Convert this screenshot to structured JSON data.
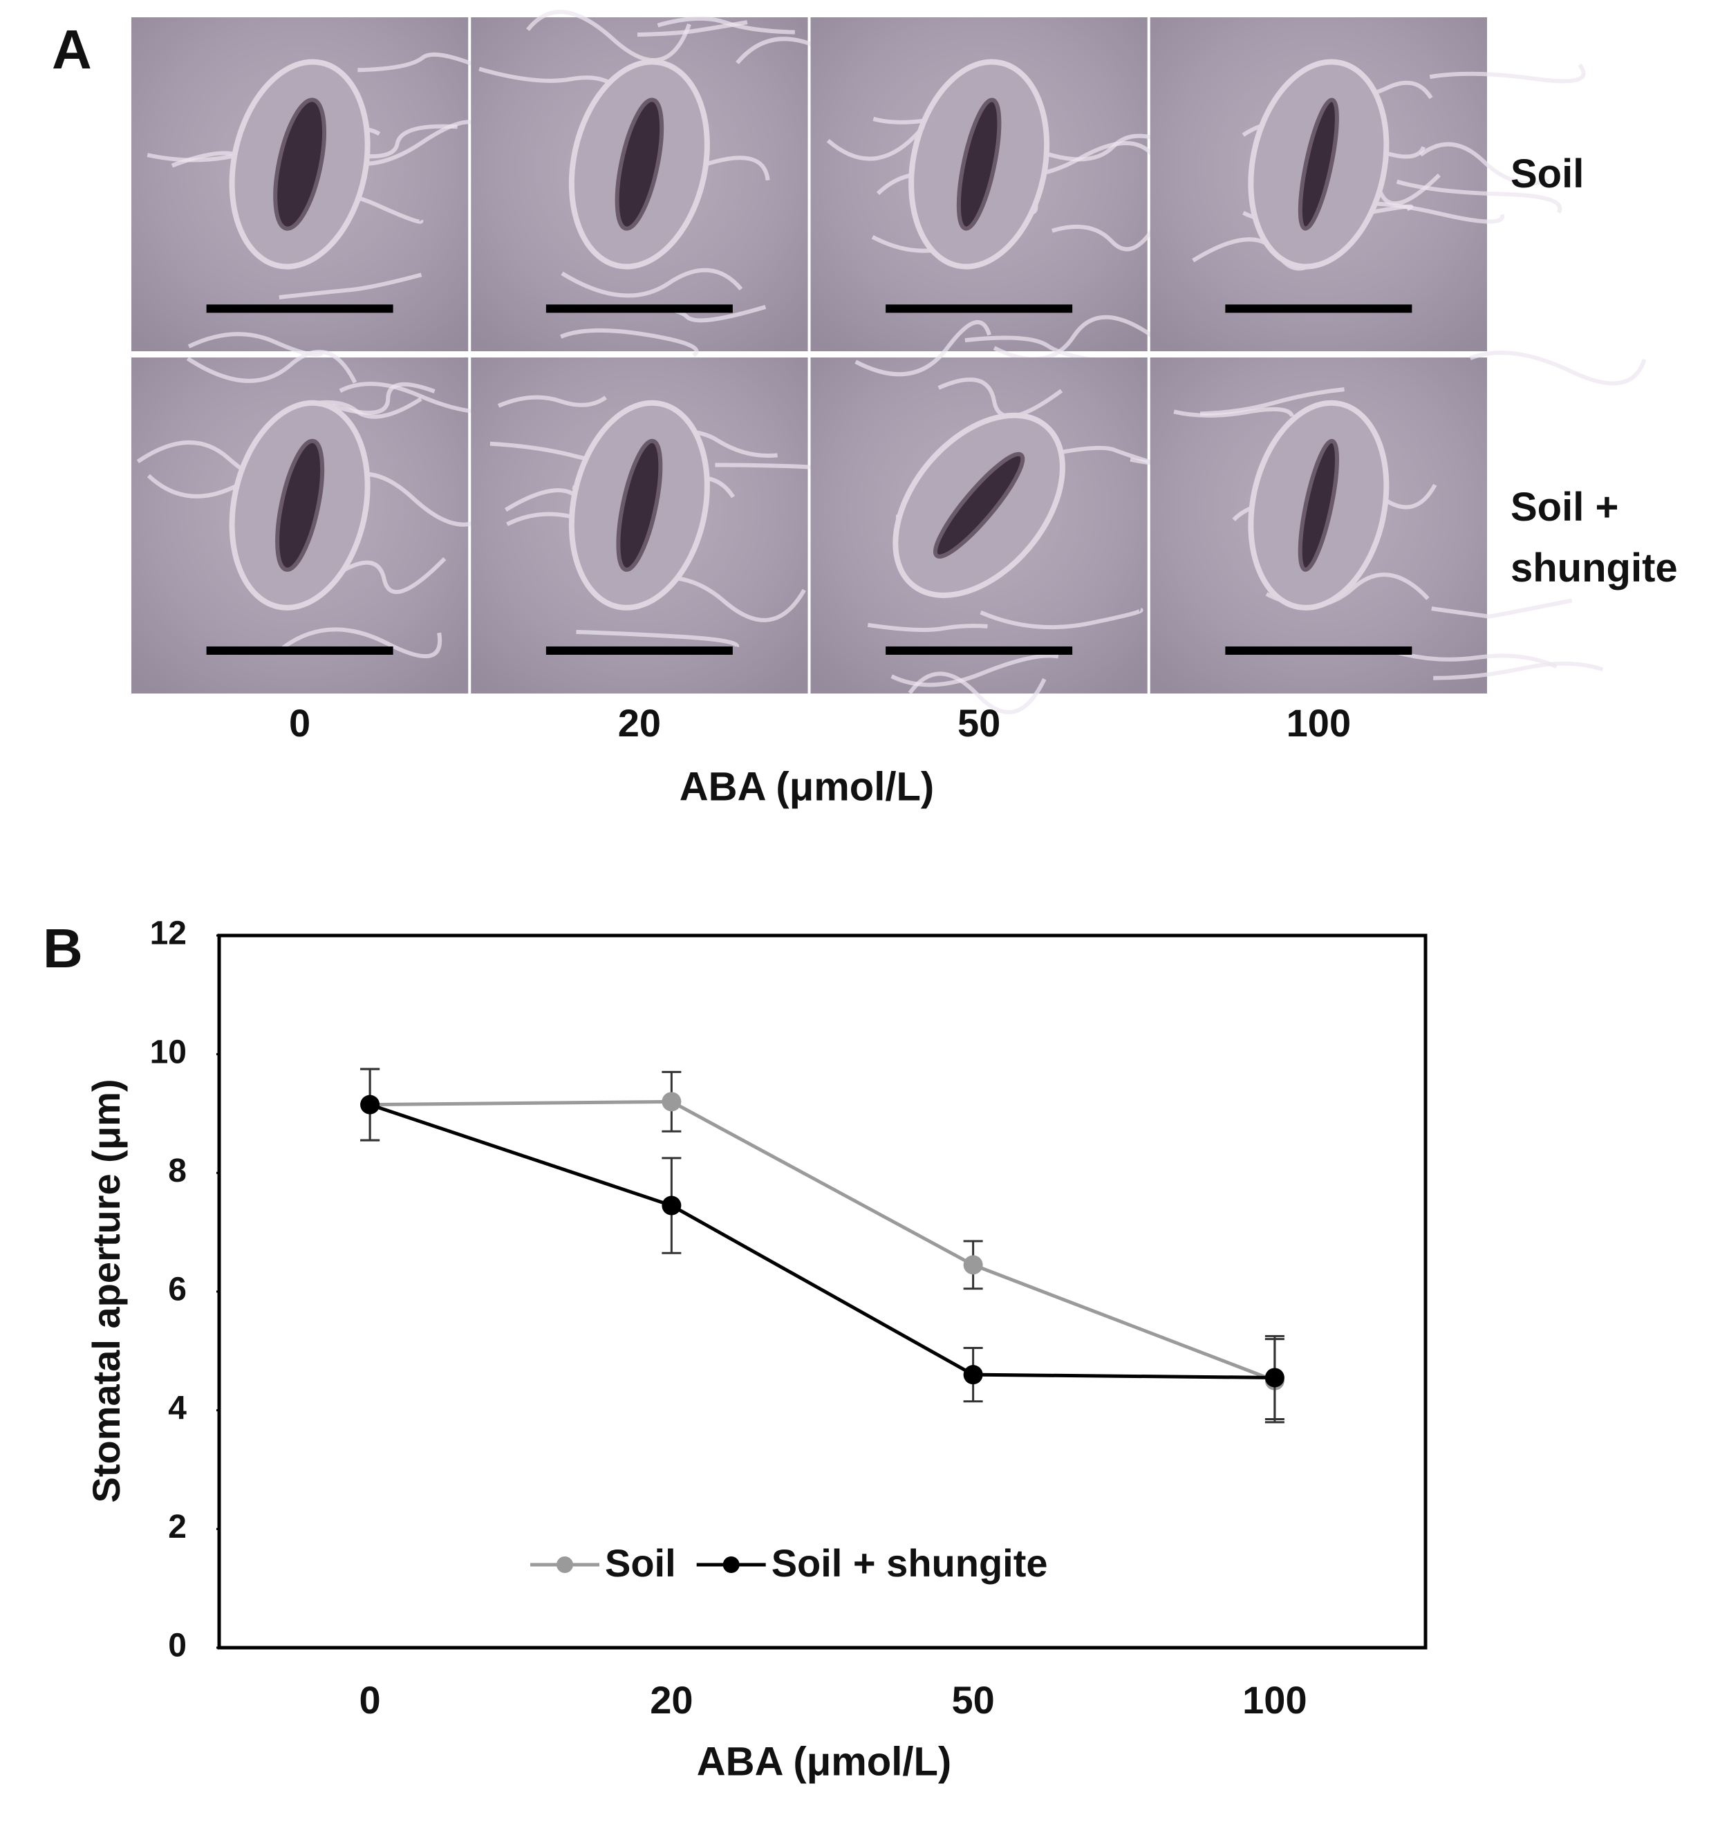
{
  "panel_a": {
    "label": "A",
    "rows": [
      "Soil",
      "Soil + shungite"
    ],
    "columns": [
      "0",
      "20",
      "50",
      "100"
    ],
    "x_label": "ABA (μmol/L)"
  },
  "chart_data": {
    "type": "line",
    "panel_label": "B",
    "categories": [
      "0",
      "20",
      "50",
      "100"
    ],
    "x_label": "ABA (μmol/L)",
    "y_label": "Stomatal aperture (μm)",
    "ylim": [
      0,
      12
    ],
    "yticks": [
      0,
      2,
      4,
      6,
      8,
      10,
      12
    ],
    "grid": false,
    "legend": "lower center",
    "series": [
      {
        "name": "Soil",
        "color": "#9a9a9a",
        "values": [
          9.15,
          9.2,
          6.45,
          4.5
        ],
        "errors": [
          0.6,
          0.5,
          0.4,
          0.7
        ]
      },
      {
        "name": "Soil + shungite",
        "color": "#000000",
        "values": [
          9.15,
          7.45,
          4.6,
          4.55
        ],
        "errors": [
          0.6,
          0.8,
          0.45,
          0.7
        ]
      }
    ]
  }
}
